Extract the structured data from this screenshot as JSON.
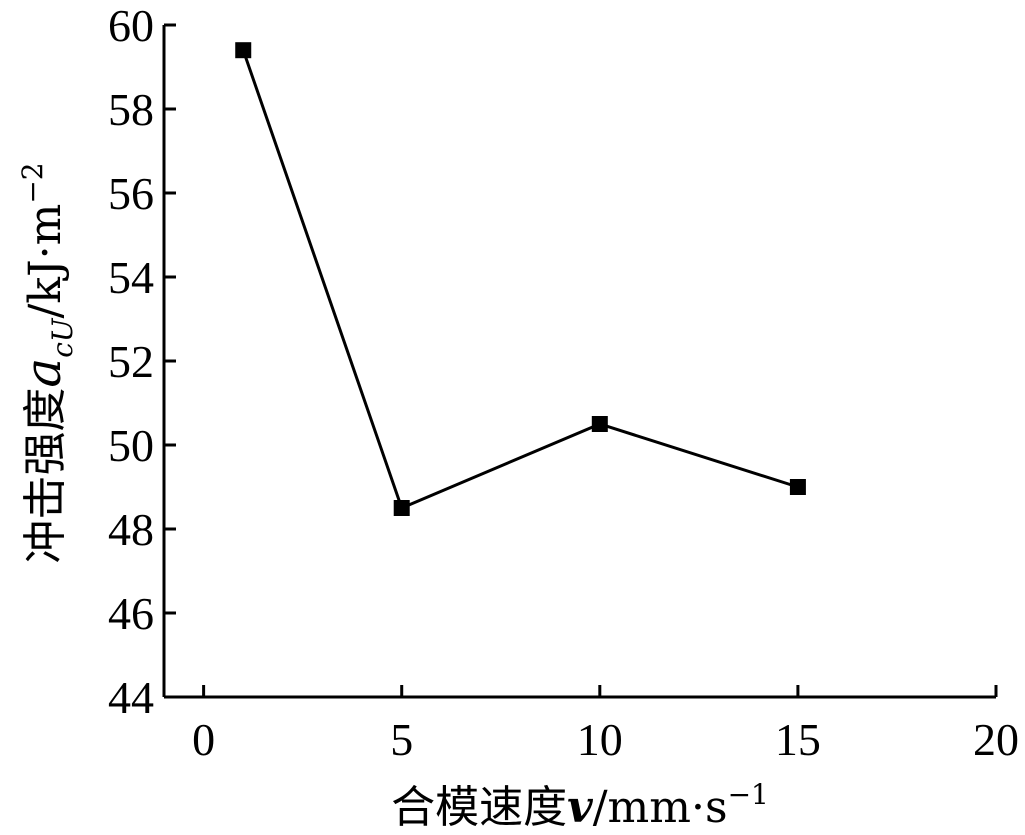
{
  "chart_data": {
    "type": "line",
    "title": "",
    "xlabel_prefix": "合模速度",
    "xlabel_var": "v",
    "xlabel_unit": "/mm·s",
    "xlabel_sup": "−1",
    "ylabel_prefix": "冲击强度",
    "ylabel_var": "a",
    "ylabel_sub": "cU",
    "ylabel_unit": "/kJ·m",
    "ylabel_sup": "−2",
    "xlim": [
      -1,
      20
    ],
    "ylim": [
      44,
      60
    ],
    "xticks": [
      0,
      5,
      10,
      15,
      20
    ],
    "yticks": [
      44,
      46,
      48,
      50,
      52,
      54,
      56,
      58,
      60
    ],
    "grid": false,
    "marker": "square",
    "series": [
      {
        "x": [
          1,
          5,
          10,
          15
        ],
        "y": [
          59.4,
          48.5,
          50.5,
          49.0
        ]
      }
    ]
  }
}
